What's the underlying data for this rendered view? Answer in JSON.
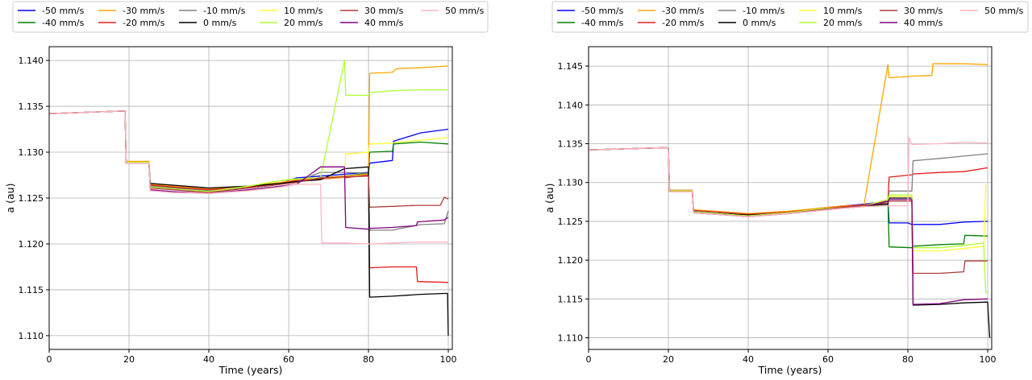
{
  "figure": {
    "legend_location": "top",
    "legend_columns": 6
  },
  "chart_data": [
    {
      "type": "line",
      "title": "",
      "xlabel": "Time (years)",
      "ylabel": "a (au)",
      "xlim": [
        0,
        101
      ],
      "ylim": [
        1.1085,
        1.1415
      ],
      "x_ticks": [
        0,
        20,
        40,
        60,
        80,
        100
      ],
      "y_ticks": [
        1.11,
        1.115,
        1.12,
        1.125,
        1.13,
        1.135,
        1.14
      ],
      "y_tick_labels": [
        "1.110",
        "1.115",
        "1.120",
        "1.125",
        "1.130",
        "1.135",
        "1.140"
      ],
      "grid": true,
      "legend": "top",
      "series": [
        {
          "name": "-50 mm/s",
          "color": "#0000ff",
          "x": [
            0,
            19,
            19.3,
            25,
            25.3,
            31,
            40,
            50,
            58,
            62,
            68,
            74,
            80,
            80.3,
            86,
            86.3,
            93,
            100
          ],
          "y": [
            1.1342,
            1.1345,
            1.1289,
            1.1289,
            1.1264,
            1.1262,
            1.1259,
            1.1262,
            1.1266,
            1.1272,
            1.1274,
            1.1276,
            1.1278,
            1.1288,
            1.1291,
            1.1312,
            1.1321,
            1.1325
          ]
        },
        {
          "name": "-40 mm/s",
          "color": "#008000",
          "x": [
            0,
            19,
            19.3,
            25,
            25.3,
            31,
            40,
            50,
            58,
            62,
            68,
            74,
            80,
            80.3,
            86,
            86.3,
            93,
            100
          ],
          "y": [
            1.1342,
            1.1345,
            1.1288,
            1.1288,
            1.1263,
            1.1261,
            1.1258,
            1.1261,
            1.1265,
            1.127,
            1.1272,
            1.1274,
            1.1277,
            1.13,
            1.1301,
            1.1309,
            1.1311,
            1.1309
          ]
        },
        {
          "name": "-30 mm/s",
          "color": "#ffa500",
          "x": [
            0,
            19,
            19.3,
            25,
            25.3,
            31,
            40,
            50,
            58,
            62,
            68,
            74,
            80,
            80.3,
            86,
            87,
            93,
            100
          ],
          "y": [
            1.1342,
            1.1345,
            1.129,
            1.129,
            1.1265,
            1.1263,
            1.126,
            1.1263,
            1.1267,
            1.127,
            1.1272,
            1.1274,
            1.1276,
            1.1386,
            1.1387,
            1.1391,
            1.1392,
            1.1394
          ]
        },
        {
          "name": "-20 mm/s",
          "color": "#e41a1c",
          "x": [
            0,
            19,
            19.3,
            25,
            25.3,
            31,
            40,
            50,
            58,
            62,
            68,
            74,
            80,
            80.3,
            86,
            92,
            92.3,
            100
          ],
          "y": [
            1.1342,
            1.1345,
            1.1289,
            1.1289,
            1.1264,
            1.1262,
            1.1259,
            1.1262,
            1.1266,
            1.1269,
            1.1271,
            1.1272,
            1.1275,
            1.1174,
            1.1175,
            1.1175,
            1.1159,
            1.1158
          ]
        },
        {
          "name": "-10 mm/s",
          "color": "#808080",
          "x": [
            0,
            19,
            19.3,
            25,
            25.3,
            31,
            40,
            50,
            58,
            62,
            68,
            74,
            80,
            80.3,
            86,
            93,
            99,
            100
          ],
          "y": [
            1.1342,
            1.1345,
            1.1288,
            1.1288,
            1.1263,
            1.1261,
            1.1258,
            1.1261,
            1.1265,
            1.1268,
            1.1278,
            1.1278,
            1.1277,
            1.1215,
            1.1215,
            1.1221,
            1.1222,
            1.1236
          ]
        },
        {
          "name": "0 mm/s",
          "color": "#000000",
          "x": [
            0,
            19,
            19.3,
            25,
            25.3,
            31,
            40,
            50,
            58,
            62,
            68,
            74,
            80,
            80.3,
            86,
            93,
            99,
            99.8,
            100
          ],
          "y": [
            1.1342,
            1.1345,
            1.1288,
            1.1288,
            1.1266,
            1.1264,
            1.1261,
            1.1263,
            1.1266,
            1.1268,
            1.127,
            1.1282,
            1.1284,
            1.1142,
            1.1143,
            1.1145,
            1.1146,
            1.1146,
            1.11
          ]
        },
        {
          "name": "10 mm/s",
          "color": "#ffff33",
          "x": [
            0,
            19,
            19.3,
            25,
            25.3,
            31,
            40,
            50,
            58,
            62,
            68,
            74,
            74.3,
            80,
            80.3,
            86,
            93,
            100
          ],
          "y": [
            1.1342,
            1.1345,
            1.1289,
            1.1289,
            1.1262,
            1.126,
            1.1257,
            1.1263,
            1.1269,
            1.1271,
            1.1272,
            1.1272,
            1.1298,
            1.13,
            1.1309,
            1.131,
            1.1313,
            1.1316
          ]
        },
        {
          "name": "20 mm/s",
          "color": "#adff2f",
          "x": [
            0,
            19,
            19.3,
            25,
            25.3,
            31,
            40,
            50,
            58,
            62,
            68,
            74,
            74.3,
            80,
            80.3,
            86,
            93,
            100
          ],
          "y": [
            1.1342,
            1.1345,
            1.1289,
            1.1289,
            1.1262,
            1.126,
            1.1257,
            1.1263,
            1.1269,
            1.1271,
            1.1272,
            1.14,
            1.1362,
            1.1362,
            1.1365,
            1.1367,
            1.1368,
            1.1368
          ]
        },
        {
          "name": "30 mm/s",
          "color": "#b03a3a",
          "x": [
            0,
            19,
            19.3,
            25,
            25.3,
            31,
            40,
            50,
            58,
            62,
            68,
            74,
            80,
            80.3,
            86,
            92,
            98,
            99,
            100
          ],
          "y": [
            1.1342,
            1.1345,
            1.1288,
            1.1288,
            1.1261,
            1.1259,
            1.1256,
            1.1261,
            1.1265,
            1.1267,
            1.1272,
            1.1273,
            1.1274,
            1.124,
            1.1241,
            1.1242,
            1.1242,
            1.1251,
            1.1249
          ]
        },
        {
          "name": "40 mm/s",
          "color": "#800080",
          "x": [
            0,
            19,
            19.3,
            25,
            25.3,
            31,
            40,
            50,
            58,
            62,
            68,
            74,
            74.3,
            80,
            80.3,
            86,
            92,
            92.3,
            99,
            100
          ],
          "y": [
            1.1342,
            1.1345,
            1.1288,
            1.1288,
            1.1259,
            1.1257,
            1.1255,
            1.1259,
            1.1263,
            1.1265,
            1.1284,
            1.1284,
            1.1218,
            1.1216,
            1.1217,
            1.1218,
            1.122,
            1.1224,
            1.1226,
            1.1229
          ]
        },
        {
          "name": "50 mm/s",
          "color": "#ffb6c1",
          "x": [
            0,
            19,
            19.3,
            25,
            25.3,
            31,
            40,
            50,
            58,
            62,
            68,
            68.3,
            74,
            80,
            86,
            93,
            100
          ],
          "y": [
            1.1342,
            1.1345,
            1.1288,
            1.1288,
            1.1258,
            1.1256,
            1.1255,
            1.1258,
            1.1262,
            1.1265,
            1.1265,
            1.1201,
            1.1201,
            1.12,
            1.1201,
            1.1202,
            1.1202
          ]
        }
      ]
    },
    {
      "type": "line",
      "title": "",
      "xlabel": "Time (years)",
      "ylabel": "a (au)",
      "xlim": [
        0,
        101
      ],
      "ylim": [
        1.1085,
        1.1475
      ],
      "x_ticks": [
        0,
        20,
        40,
        60,
        80,
        100
      ],
      "y_ticks": [
        1.11,
        1.115,
        1.12,
        1.125,
        1.13,
        1.135,
        1.14,
        1.145
      ],
      "y_tick_labels": [
        "1.110",
        "1.115",
        "1.120",
        "1.125",
        "1.130",
        "1.135",
        "1.140",
        "1.145"
      ],
      "grid": true,
      "legend": "top",
      "series": [
        {
          "name": "-50 mm/s",
          "color": "#0000ff",
          "x": [
            0,
            20,
            20.3,
            26,
            26.3,
            32,
            40,
            50,
            58,
            64,
            69,
            75,
            75.3,
            80,
            81,
            88,
            94,
            100
          ],
          "y": [
            1.1342,
            1.1345,
            1.129,
            1.129,
            1.1263,
            1.1261,
            1.1259,
            1.1262,
            1.1267,
            1.127,
            1.1272,
            1.1276,
            1.1248,
            1.1248,
            1.1246,
            1.1246,
            1.1249,
            1.125
          ]
        },
        {
          "name": "-40 mm/s",
          "color": "#008000",
          "x": [
            0,
            20,
            20.3,
            26,
            26.3,
            32,
            40,
            50,
            58,
            64,
            69,
            75,
            75.3,
            81,
            81.3,
            88,
            94,
            94.3,
            100
          ],
          "y": [
            1.1342,
            1.1345,
            1.1289,
            1.1289,
            1.1262,
            1.126,
            1.1258,
            1.1261,
            1.1266,
            1.1269,
            1.1271,
            1.1276,
            1.1217,
            1.1216,
            1.1218,
            1.122,
            1.1221,
            1.1232,
            1.1231
          ]
        },
        {
          "name": "-30 mm/s",
          "color": "#ffa500",
          "x": [
            0,
            20,
            20.3,
            26,
            26.3,
            32,
            40,
            50,
            58,
            64,
            69,
            75,
            75.3,
            81,
            86,
            86.3,
            94,
            100
          ],
          "y": [
            1.1342,
            1.1345,
            1.129,
            1.129,
            1.1265,
            1.1263,
            1.126,
            1.1263,
            1.1267,
            1.127,
            1.1271,
            1.1452,
            1.1435,
            1.1437,
            1.1438,
            1.1453,
            1.1453,
            1.1452
          ]
        },
        {
          "name": "-20 mm/s",
          "color": "#e41a1c",
          "x": [
            0,
            20,
            20.3,
            26,
            26.3,
            32,
            40,
            50,
            58,
            64,
            69,
            75,
            75.3,
            81,
            81.3,
            88,
            94,
            100
          ],
          "y": [
            1.1342,
            1.1345,
            1.1289,
            1.1289,
            1.1264,
            1.1262,
            1.1259,
            1.1262,
            1.1266,
            1.1269,
            1.1271,
            1.1276,
            1.1307,
            1.131,
            1.1311,
            1.1313,
            1.1314,
            1.1319
          ]
        },
        {
          "name": "-10 mm/s",
          "color": "#808080",
          "x": [
            0,
            20,
            20.3,
            26,
            26.3,
            32,
            40,
            50,
            58,
            64,
            69,
            75,
            75.3,
            81,
            81.3,
            88,
            94,
            100
          ],
          "y": [
            1.1342,
            1.1345,
            1.1288,
            1.1288,
            1.1263,
            1.1261,
            1.1258,
            1.1261,
            1.1265,
            1.1268,
            1.127,
            1.1272,
            1.1289,
            1.1289,
            1.1328,
            1.1331,
            1.1334,
            1.1337
          ]
        },
        {
          "name": "0 mm/s",
          "color": "#000000",
          "x": [
            0,
            20,
            20.3,
            26,
            26.3,
            32,
            40,
            50,
            58,
            64,
            69,
            75,
            75.3,
            81,
            81.3,
            88,
            94,
            100,
            100.5
          ],
          "y": [
            1.1342,
            1.1345,
            1.1288,
            1.1288,
            1.1262,
            1.126,
            1.1258,
            1.126,
            1.1265,
            1.1268,
            1.127,
            1.1272,
            1.128,
            1.128,
            1.1142,
            1.1143,
            1.1145,
            1.1146,
            1.11
          ]
        },
        {
          "name": "10 mm/s",
          "color": "#ffff33",
          "x": [
            0,
            20,
            20.3,
            26,
            26.3,
            32,
            40,
            50,
            58,
            64,
            69,
            75,
            75.3,
            81,
            81.3,
            88,
            94,
            99,
            99.5,
            100
          ],
          "y": [
            1.1342,
            1.1345,
            1.1289,
            1.1289,
            1.1262,
            1.126,
            1.1257,
            1.1261,
            1.1266,
            1.1268,
            1.127,
            1.1278,
            1.1282,
            1.1282,
            1.1212,
            1.1212,
            1.1215,
            1.1218,
            1.1295,
            1.1297
          ]
        },
        {
          "name": "20 mm/s",
          "color": "#adff2f",
          "x": [
            0,
            20,
            20.3,
            26,
            26.3,
            32,
            40,
            50,
            58,
            64,
            69,
            75,
            75.3,
            81,
            81.3,
            88,
            94,
            99,
            99.5,
            100
          ],
          "y": [
            1.1342,
            1.1345,
            1.1289,
            1.1289,
            1.1262,
            1.126,
            1.1257,
            1.1261,
            1.1266,
            1.1268,
            1.127,
            1.1278,
            1.1284,
            1.1284,
            1.1216,
            1.1216,
            1.1219,
            1.1222,
            1.1158,
            1.116
          ]
        },
        {
          "name": "30 mm/s",
          "color": "#b03a3a",
          "x": [
            0,
            20,
            20.3,
            26,
            26.3,
            32,
            40,
            50,
            58,
            64,
            69,
            75,
            75.3,
            81,
            81.3,
            88,
            94,
            94.3,
            100
          ],
          "y": [
            1.1342,
            1.1345,
            1.1288,
            1.1288,
            1.1261,
            1.1259,
            1.1256,
            1.126,
            1.1265,
            1.1268,
            1.127,
            1.1274,
            1.1276,
            1.1276,
            1.1183,
            1.1183,
            1.1185,
            1.1199,
            1.1199
          ]
        },
        {
          "name": "40 mm/s",
          "color": "#800080",
          "x": [
            0,
            20,
            20.3,
            26,
            26.3,
            32,
            40,
            50,
            58,
            64,
            69,
            75,
            75.3,
            81,
            81.3,
            88,
            94,
            100
          ],
          "y": [
            1.1342,
            1.1345,
            1.1288,
            1.1288,
            1.1261,
            1.1259,
            1.1256,
            1.126,
            1.1264,
            1.1267,
            1.1269,
            1.1276,
            1.1278,
            1.1278,
            1.1143,
            1.1144,
            1.1149,
            1.115
          ]
        },
        {
          "name": "50 mm/s",
          "color": "#ffb6c1",
          "x": [
            0,
            20,
            20.3,
            26,
            26.3,
            32,
            40,
            50,
            58,
            64,
            69,
            75,
            80,
            80.3,
            81,
            88,
            94,
            100
          ],
          "y": [
            1.1342,
            1.1345,
            1.1288,
            1.1288,
            1.1261,
            1.1259,
            1.1256,
            1.126,
            1.1264,
            1.1267,
            1.1269,
            1.127,
            1.127,
            1.1358,
            1.1349,
            1.135,
            1.1352,
            1.1351
          ]
        }
      ]
    }
  ]
}
